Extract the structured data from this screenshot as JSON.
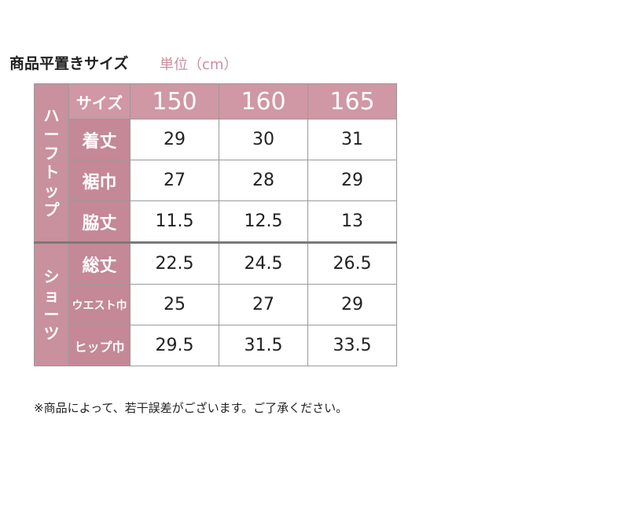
{
  "title": "商品平置きサイズ",
  "unit": "単位（cm）",
  "table": {
    "size_label": "サイズ",
    "sizes": [
      "150",
      "160",
      "165"
    ],
    "groups": [
      {
        "name": "ハーフトップ",
        "rows": [
          {
            "label": "着丈",
            "values": [
              "29",
              "30",
              "31"
            ]
          },
          {
            "label": "裾巾",
            "values": [
              "27",
              "28",
              "29"
            ]
          },
          {
            "label": "脇丈",
            "values": [
              "11.5",
              "12.5",
              "13"
            ]
          }
        ]
      },
      {
        "name": "ショーツ",
        "rows": [
          {
            "label": "総丈",
            "values": [
              "22.5",
              "24.5",
              "26.5"
            ]
          },
          {
            "label": "ウエスト巾",
            "values": [
              "25",
              "27",
              "29"
            ]
          },
          {
            "label": "ヒップ巾",
            "values": [
              "29.5",
              "31.5",
              "33.5"
            ]
          }
        ]
      }
    ]
  },
  "note": "※商品によって、若干誤差がございます。ご了承ください。",
  "colors": {
    "header_pink": "#d097a5",
    "label_pink": "#c48896",
    "unit_pink": "#c98f9d"
  }
}
